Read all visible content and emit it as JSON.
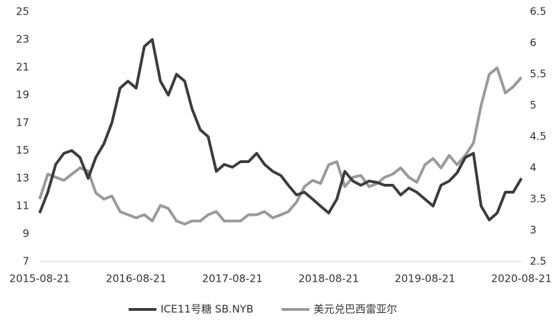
{
  "chart_data": {
    "type": "line",
    "x": [
      "2015-08-21",
      "2015-09-21",
      "2015-10-21",
      "2015-11-21",
      "2015-12-21",
      "2016-01-21",
      "2016-02-21",
      "2016-03-21",
      "2016-04-21",
      "2016-05-21",
      "2016-06-21",
      "2016-07-21",
      "2016-08-21",
      "2016-09-21",
      "2016-10-21",
      "2016-11-21",
      "2016-12-21",
      "2017-01-21",
      "2017-02-21",
      "2017-03-21",
      "2017-04-21",
      "2017-05-21",
      "2017-06-21",
      "2017-07-21",
      "2017-08-21",
      "2017-09-21",
      "2017-10-21",
      "2017-11-21",
      "2017-12-21",
      "2018-01-21",
      "2018-02-21",
      "2018-03-21",
      "2018-04-21",
      "2018-05-21",
      "2018-06-21",
      "2018-07-21",
      "2018-08-21",
      "2018-09-21",
      "2018-10-21",
      "2018-11-21",
      "2018-12-21",
      "2019-01-21",
      "2019-02-21",
      "2019-03-21",
      "2019-04-21",
      "2019-05-21",
      "2019-06-21",
      "2019-07-21",
      "2019-08-21",
      "2019-09-21",
      "2019-10-21",
      "2019-11-21",
      "2019-12-21",
      "2020-01-21",
      "2020-02-21",
      "2020-03-21",
      "2020-04-21",
      "2020-05-21",
      "2020-06-21",
      "2020-07-21",
      "2020-08-21"
    ],
    "series": [
      {
        "name": "ICE11号糖 SB.NYB",
        "color": "#3c3c3c",
        "values": [
          10.5,
          12,
          14,
          14.8,
          15,
          14.5,
          13,
          14.5,
          15.5,
          17,
          19.5,
          20,
          19.5,
          22.5,
          23,
          20,
          19,
          20.5,
          20,
          18,
          16.5,
          16,
          13.5,
          14,
          13.8,
          14.2,
          14.2,
          14.8,
          14,
          13.5,
          13.2,
          12.5,
          11.8,
          12,
          11.5,
          11,
          10.5,
          11.5,
          13.5,
          12.8,
          12.5,
          12.8,
          12.7,
          12.5,
          12.5,
          11.8,
          12.3,
          12,
          11.5,
          11,
          12.5,
          12.8,
          13.4,
          14.5,
          14.8,
          11,
          10,
          10.5,
          12,
          12,
          13
        ]
      },
      {
        "name": "美元兑巴西雷亚尔",
        "color": "#9a9a9a",
        "axis": "y2",
        "values": [
          3.5,
          3.9,
          3.85,
          3.8,
          3.9,
          4.0,
          3.95,
          3.6,
          3.5,
          3.55,
          3.3,
          3.25,
          3.2,
          3.25,
          3.15,
          3.4,
          3.35,
          3.15,
          3.1,
          3.15,
          3.15,
          3.25,
          3.3,
          3.15,
          3.15,
          3.15,
          3.25,
          3.25,
          3.3,
          3.2,
          3.25,
          3.3,
          3.45,
          3.7,
          3.8,
          3.75,
          4.05,
          4.1,
          3.7,
          3.85,
          3.88,
          3.7,
          3.75,
          3.85,
          3.9,
          4.0,
          3.85,
          3.77,
          4.05,
          4.15,
          4.0,
          4.2,
          4.05,
          4.2,
          4.4,
          5.0,
          5.5,
          5.6,
          5.2,
          5.3,
          5.45
        ]
      }
    ],
    "xlim": [
      "2015-08-21",
      "2020-08-21"
    ],
    "xticks": [
      "2015-08-21",
      "2016-08-21",
      "2017-08-21",
      "2018-08-21",
      "2019-08-21",
      "2020-08-21"
    ],
    "ylim": [
      7,
      25
    ],
    "yticks": [
      7,
      9,
      11,
      13,
      15,
      17,
      19,
      21,
      23,
      25
    ],
    "y2lim": [
      2.5,
      6.5
    ],
    "y2ticks": [
      2.5,
      3,
      3.5,
      4,
      4.5,
      5,
      5.5,
      6,
      6.5
    ],
    "legend": "bottom"
  }
}
